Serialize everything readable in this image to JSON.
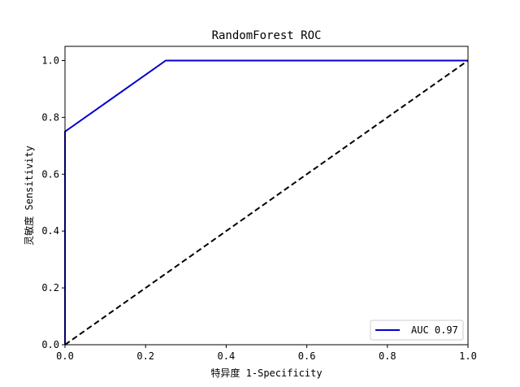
{
  "chart_data": {
    "type": "line",
    "title": "RandomForest ROC",
    "xlabel": "特异度 1-Specificity",
    "ylabel": "灵敏度 Sensitivity",
    "xlim": [
      0.0,
      1.0
    ],
    "ylim": [
      0.0,
      1.05
    ],
    "xticks": [
      "0.0",
      "0.2",
      "0.4",
      "0.6",
      "0.8",
      "1.0"
    ],
    "yticks": [
      "0.0",
      "0.2",
      "0.4",
      "0.6",
      "0.8",
      "1.0"
    ],
    "xtick_values": [
      0.0,
      0.2,
      0.4,
      0.6,
      0.8,
      1.0
    ],
    "ytick_values": [
      0.0,
      0.2,
      0.4,
      0.6,
      0.8,
      1.0
    ],
    "grid": false,
    "legend_position": "lower-right",
    "series": [
      {
        "name": "AUC 0.97",
        "color": "#0000cc",
        "style": "solid",
        "x": [
          0.0,
          0.0,
          0.25,
          1.0
        ],
        "y": [
          0.0,
          0.75,
          1.0,
          1.0
        ]
      },
      {
        "color": "#000000",
        "style": "dashed",
        "x": [
          0.0,
          1.0
        ],
        "y": [
          0.0,
          1.0
        ]
      }
    ]
  }
}
